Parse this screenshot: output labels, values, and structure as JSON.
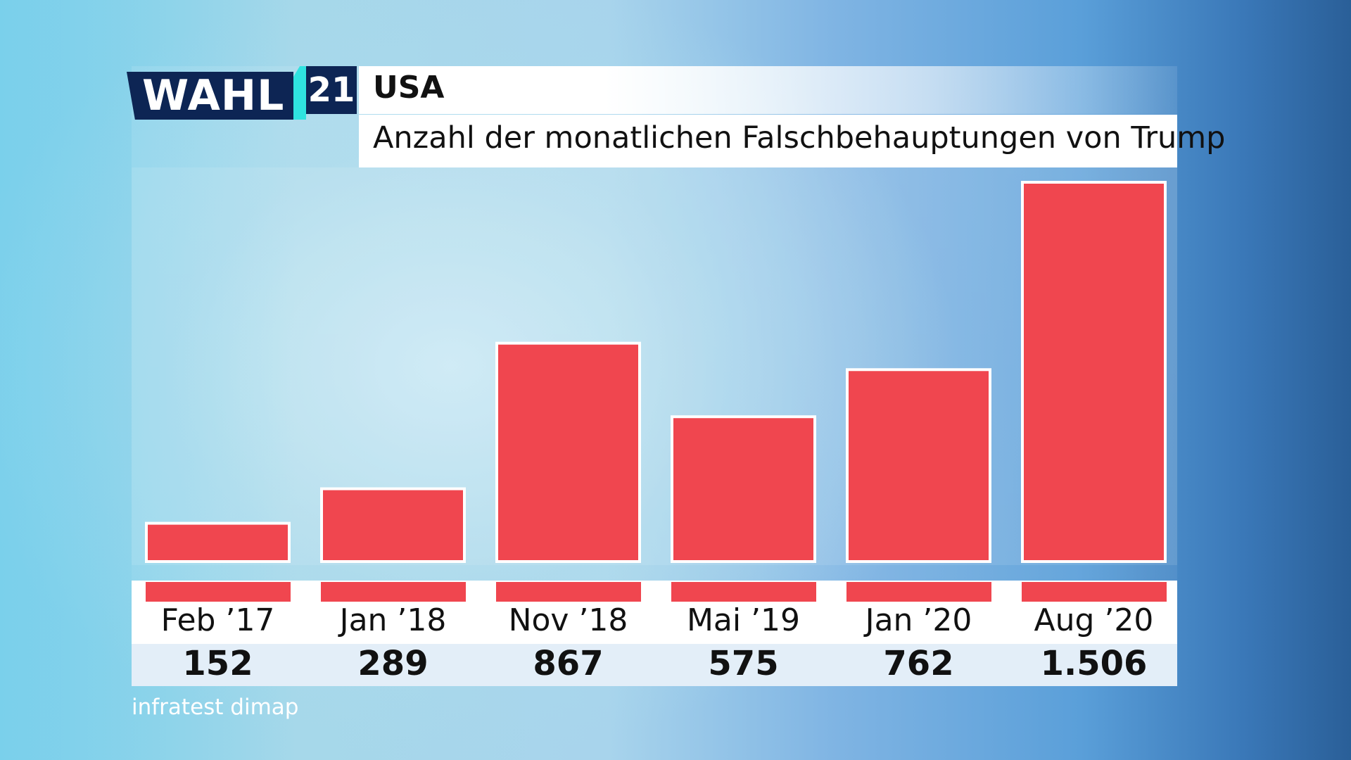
{
  "logo": {
    "wahl": "WAHL",
    "number": "21"
  },
  "header": {
    "title": "USA",
    "subtitle": "Anzahl der monatlichen Falschbehauptungen von Trump"
  },
  "source": "infratest dimap",
  "colors": {
    "bar": "#f0464f",
    "bar_border": "#ffffff",
    "navy": "#0d2554",
    "accent": "#2fe3e0"
  },
  "chart_data": {
    "type": "bar",
    "title": "Anzahl der monatlichen Falschbehauptungen von Trump",
    "categories": [
      "Feb ’17",
      "Jan ’18",
      "Nov ’18",
      "Mai ’19",
      "Jan ’20",
      "Aug ’20"
    ],
    "values": [
      152,
      289,
      867,
      575,
      762,
      1506
    ],
    "value_labels": [
      "152",
      "289",
      "867",
      "575",
      "762",
      "1.506"
    ],
    "ylim": [
      0,
      1506
    ],
    "grid": false,
    "legend": "none"
  }
}
